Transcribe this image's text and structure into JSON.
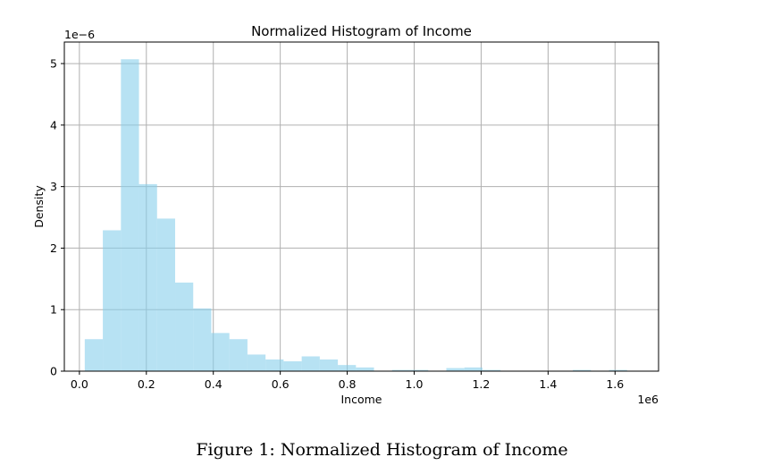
{
  "chart_data": {
    "type": "bar",
    "title": "Normalized Histogram of Income",
    "xlabel": "Income",
    "ylabel": "Density",
    "x_offset_label": "1e6",
    "y_offset_label": "1e−6",
    "xlim": [
      -0.045,
      1.73
    ],
    "ylim": [
      0,
      5.35
    ],
    "x_ticks": [
      0.0,
      0.2,
      0.4,
      0.6,
      0.8,
      1.0,
      1.2,
      1.4,
      1.6
    ],
    "x_tick_labels": [
      "0.0",
      "0.2",
      "0.4",
      "0.6",
      "0.8",
      "1.0",
      "1.2",
      "1.4",
      "1.6"
    ],
    "y_ticks": [
      0,
      1,
      2,
      3,
      4,
      5
    ],
    "y_tick_labels": [
      "0",
      "1",
      "2",
      "3",
      "4",
      "5"
    ],
    "grid": true,
    "bar_color": "#87ceeb",
    "bar_opacity": 0.6,
    "bins": [
      {
        "x0": 0.016,
        "x1": 0.07,
        "value": 0.52
      },
      {
        "x0": 0.07,
        "x1": 0.124,
        "value": 2.29
      },
      {
        "x0": 0.124,
        "x1": 0.178,
        "value": 5.07
      },
      {
        "x0": 0.178,
        "x1": 0.232,
        "value": 3.04
      },
      {
        "x0": 0.232,
        "x1": 0.286,
        "value": 2.48
      },
      {
        "x0": 0.286,
        "x1": 0.34,
        "value": 1.44
      },
      {
        "x0": 0.34,
        "x1": 0.394,
        "value": 1.02
      },
      {
        "x0": 0.394,
        "x1": 0.448,
        "value": 0.62
      },
      {
        "x0": 0.448,
        "x1": 0.502,
        "value": 0.52
      },
      {
        "x0": 0.502,
        "x1": 0.556,
        "value": 0.27
      },
      {
        "x0": 0.556,
        "x1": 0.61,
        "value": 0.19
      },
      {
        "x0": 0.61,
        "x1": 0.664,
        "value": 0.16
      },
      {
        "x0": 0.664,
        "x1": 0.718,
        "value": 0.24
      },
      {
        "x0": 0.718,
        "x1": 0.772,
        "value": 0.19
      },
      {
        "x0": 0.772,
        "x1": 0.826,
        "value": 0.1
      },
      {
        "x0": 0.826,
        "x1": 0.88,
        "value": 0.06
      },
      {
        "x0": 0.88,
        "x1": 0.934,
        "value": 0.0
      },
      {
        "x0": 0.934,
        "x1": 0.988,
        "value": 0.02
      },
      {
        "x0": 0.988,
        "x1": 1.042,
        "value": 0.02
      },
      {
        "x0": 1.042,
        "x1": 1.096,
        "value": 0.0
      },
      {
        "x0": 1.096,
        "x1": 1.15,
        "value": 0.05
      },
      {
        "x0": 1.15,
        "x1": 1.204,
        "value": 0.06
      },
      {
        "x0": 1.204,
        "x1": 1.258,
        "value": 0.02
      },
      {
        "x0": 1.258,
        "x1": 1.312,
        "value": 0.0
      },
      {
        "x0": 1.312,
        "x1": 1.366,
        "value": 0.0
      },
      {
        "x0": 1.366,
        "x1": 1.42,
        "value": 0.0
      },
      {
        "x0": 1.42,
        "x1": 1.474,
        "value": 0.0
      },
      {
        "x0": 1.474,
        "x1": 1.528,
        "value": 0.02
      },
      {
        "x0": 1.528,
        "x1": 1.582,
        "value": 0.0
      },
      {
        "x0": 1.582,
        "x1": 1.636,
        "value": 0.02
      }
    ]
  },
  "caption": "Figure 1: Normalized Histogram of Income"
}
